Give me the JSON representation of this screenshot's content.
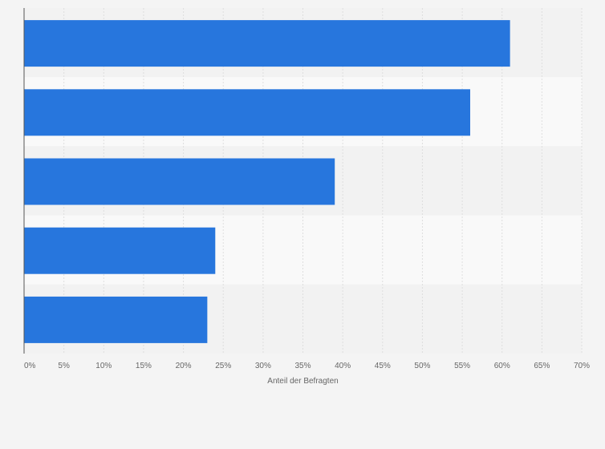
{
  "chart_data": {
    "type": "bar",
    "orientation": "horizontal",
    "categories": [
      "",
      "",
      "",
      "",
      ""
    ],
    "values": [
      61,
      56,
      39,
      24,
      23
    ],
    "xlabel": "Anteil der Befragten",
    "xlim": [
      0,
      70
    ],
    "x_ticks": [
      "0%",
      "5%",
      "10%",
      "15%",
      "20%",
      "25%",
      "30%",
      "35%",
      "40%",
      "45%",
      "50%",
      "55%",
      "60%",
      "65%",
      "70%"
    ],
    "grid": "vertical",
    "colors": {
      "bar": "#2776dd",
      "band_light": "#f9f9f9",
      "band_dark": "#f2f2f2",
      "grid": "#dedede",
      "axis": "#555555"
    }
  }
}
